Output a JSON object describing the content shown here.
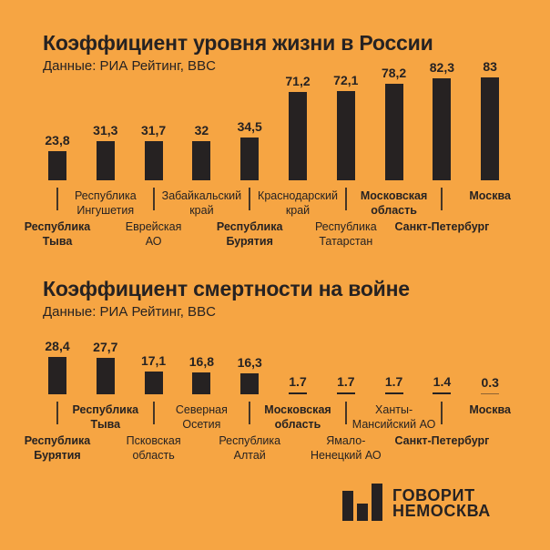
{
  "page": {
    "background": "#F6A543",
    "ink": "#262222"
  },
  "chart_data": [
    {
      "type": "bar",
      "title": "Коэффициент уровня жизни в России",
      "source": "Данные: РИА Рейтинг, BBC",
      "categories": [
        "Республика\nТыва",
        "Республика\nИнгушетия",
        "Еврейская\nАО",
        "Забайкальский\nкрай",
        "Республика\nБурятия",
        "Краснодарский\nкрай",
        "Республика\nТатарстан",
        "Московская\nобласть",
        "Санкт-Петербург",
        "Москва"
      ],
      "values": [
        23.8,
        31.3,
        31.7,
        32,
        34.5,
        71.2,
        72.1,
        78.2,
        82.3,
        83
      ],
      "value_labels": [
        "23,8",
        "31,3",
        "31,7",
        "32",
        "34,5",
        "71,2",
        "72,1",
        "78,2",
        "82,3",
        "83"
      ],
      "bold_categories": [
        true,
        false,
        false,
        false,
        true,
        false,
        false,
        true,
        true,
        true
      ],
      "label_row": [
        "bottom",
        "top",
        "bottom",
        "top",
        "bottom",
        "top",
        "bottom",
        "top",
        "bottom",
        "top"
      ],
      "xlabel": "",
      "ylabel": "",
      "ylim": [
        0,
        90
      ],
      "grid": false,
      "legend": false
    },
    {
      "type": "bar",
      "title": "Коэффициент смертности на войне",
      "source": "Данные: РИА Рейтинг, BBC",
      "categories": [
        "Республика\nБурятия",
        "Республика\nТыва",
        "Псковская\nобласть",
        "Северная\nОсетия",
        "Республика\nАлтай",
        "Московская\nобласть",
        "Ямало-\nНенецкий АО",
        "Ханты-\nМансийский АО",
        "Санкт-Петербург",
        "Москва"
      ],
      "values": [
        28.4,
        27.7,
        17.1,
        16.8,
        16.3,
        1.7,
        1.7,
        1.7,
        1.4,
        0.3
      ],
      "value_labels": [
        "28,4",
        "27,7",
        "17,1",
        "16,8",
        "16,3",
        "1.7",
        "1.7",
        "1.7",
        "1.4",
        "0.3"
      ],
      "bold_categories": [
        true,
        true,
        false,
        false,
        false,
        true,
        false,
        false,
        true,
        true
      ],
      "label_row": [
        "bottom",
        "top",
        "bottom",
        "top",
        "bottom",
        "top",
        "bottom",
        "top",
        "bottom",
        "top"
      ],
      "xlabel": "",
      "ylabel": "",
      "ylim": [
        0,
        30
      ],
      "grid": false,
      "legend": false
    }
  ],
  "logo": {
    "line1": "ГОВОРИТ",
    "line2": "НЕМОСКВА",
    "icon": "bar-chart-logo-icon"
  }
}
